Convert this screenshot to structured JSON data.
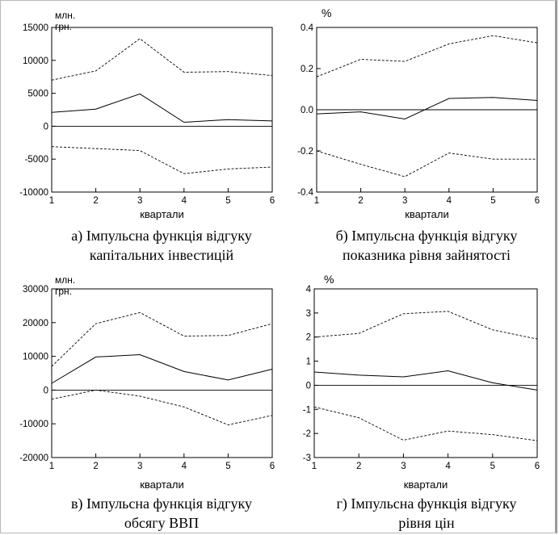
{
  "chart_data": [
    {
      "type": "line",
      "unit_label": "млн. грн.",
      "xlabel": "квартали",
      "caption_line1": "а) Імпульсна функція відгуку",
      "caption_line2": "капітальних інвестицій",
      "x": [
        1,
        2,
        3,
        4,
        5,
        6
      ],
      "xlim": [
        1,
        6
      ],
      "ylim": [
        -10000,
        15000
      ],
      "yticks": [
        -10000,
        -5000,
        0,
        5000,
        10000,
        15000
      ],
      "ytick_labels": [
        "-10000",
        "-5000",
        "0",
        "5000",
        "10000",
        "15000"
      ],
      "zero_line": true,
      "series": [
        {
          "style": "solid",
          "values": [
            2100,
            2600,
            4900,
            600,
            1000,
            800
          ]
        },
        {
          "style": "dashed",
          "values": [
            7000,
            8400,
            13300,
            8200,
            8300,
            7700
          ]
        },
        {
          "style": "dashed",
          "values": [
            -3100,
            -3400,
            -3700,
            -7200,
            -6500,
            -6200
          ]
        }
      ]
    },
    {
      "type": "line",
      "unit_label": "%",
      "xlabel": "квартали",
      "caption_line1": "б) Імпульсна функція відгуку",
      "caption_line2": "показника рівня зайнятості",
      "x": [
        1,
        2,
        3,
        4,
        5,
        6
      ],
      "xlim": [
        1,
        6
      ],
      "ylim": [
        -0.4,
        0.4
      ],
      "yticks": [
        -0.4,
        -0.2,
        0.0,
        0.2,
        0.4
      ],
      "ytick_labels": [
        "-0.4",
        "-0.2",
        "0.0",
        "0.2",
        "0.4"
      ],
      "zero_line": true,
      "series": [
        {
          "style": "solid",
          "values": [
            -0.02,
            -0.01,
            -0.045,
            0.055,
            0.06,
            0.045
          ]
        },
        {
          "style": "dashed",
          "values": [
            0.16,
            0.245,
            0.235,
            0.32,
            0.36,
            0.325
          ]
        },
        {
          "style": "dashed",
          "values": [
            -0.2,
            -0.265,
            -0.325,
            -0.21,
            -0.24,
            -0.24
          ]
        }
      ]
    },
    {
      "type": "line",
      "unit_label": "млн. грн.",
      "xlabel": "квартали",
      "caption_line1": "в) Імпульсна функція відгуку",
      "caption_line2": "обсягу ВВП",
      "x": [
        1,
        2,
        3,
        4,
        5,
        6
      ],
      "xlim": [
        1,
        6
      ],
      "ylim": [
        -20000,
        30000
      ],
      "yticks": [
        -20000,
        -10000,
        0,
        10000,
        20000,
        30000
      ],
      "ytick_labels": [
        "-20000",
        "-10000",
        "0",
        "10000",
        "20000",
        "30000"
      ],
      "zero_line": true,
      "series": [
        {
          "style": "solid",
          "values": [
            2000,
            9800,
            10500,
            5500,
            3000,
            6200
          ]
        },
        {
          "style": "dashed",
          "values": [
            7000,
            19700,
            23000,
            16000,
            16200,
            19700
          ]
        },
        {
          "style": "dashed",
          "values": [
            -2700,
            0,
            -1800,
            -5000,
            -10300,
            -7500
          ]
        }
      ]
    },
    {
      "type": "line",
      "unit_label": "%",
      "xlabel": "квартали",
      "caption_line1": "г) Імпульсна функція відгуку",
      "caption_line2": "рівня цін",
      "x": [
        1,
        2,
        3,
        4,
        5,
        6
      ],
      "xlim": [
        1,
        6
      ],
      "ylim": [
        -3,
        4
      ],
      "yticks": [
        -3,
        -2,
        -1,
        0,
        1,
        2,
        3,
        4
      ],
      "ytick_labels": [
        "-3",
        "-2",
        "-1",
        "0",
        "1",
        "2",
        "3",
        "4"
      ],
      "zero_line": true,
      "series": [
        {
          "style": "solid",
          "values": [
            0.55,
            0.42,
            0.35,
            0.6,
            0.1,
            -0.2
          ]
        },
        {
          "style": "dashed",
          "values": [
            2.0,
            2.15,
            2.97,
            3.07,
            2.3,
            1.92
          ]
        },
        {
          "style": "dashed",
          "values": [
            -0.9,
            -1.35,
            -2.28,
            -1.9,
            -2.05,
            -2.3
          ]
        }
      ]
    }
  ]
}
